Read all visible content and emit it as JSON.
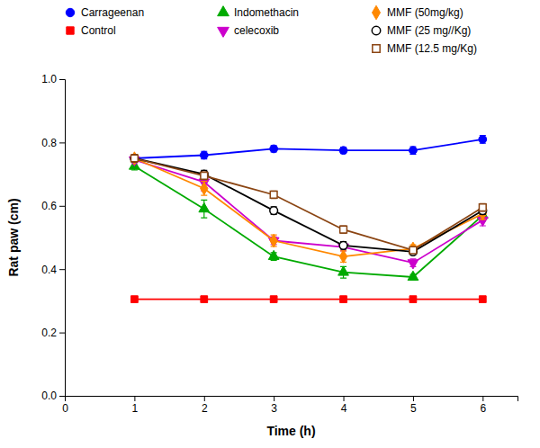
{
  "chart_data": {
    "type": "line",
    "xlabel": "Time (h)",
    "ylabel": "Rat paw (cm)",
    "x": [
      1,
      2,
      3,
      4,
      5,
      6
    ],
    "series": [
      {
        "name": "Carrageenan",
        "color": "#0000FF",
        "marker": "circle",
        "line_style": "solid",
        "values": [
          0.75,
          0.76,
          0.78,
          0.775,
          0.775,
          0.81
        ],
        "errors": [
          0.01,
          0.012,
          0.01,
          0.01,
          0.012,
          0.012
        ]
      },
      {
        "name": "Control",
        "color": "#FF0000",
        "marker": "square",
        "line_style": "solid",
        "values": [
          0.305,
          0.305,
          0.305,
          0.305,
          0.305,
          0.305
        ],
        "errors": [
          0.004,
          0.004,
          0.004,
          0.004,
          0.004,
          0.004
        ]
      },
      {
        "name": "Indomethacin",
        "color": "#00AA00",
        "marker": "triangle-up",
        "line_style": "solid",
        "values": [
          0.725,
          0.59,
          0.44,
          0.39,
          0.375,
          0.57
        ],
        "errors": [
          0.012,
          0.028,
          0.012,
          0.018,
          0.008,
          0.018
        ]
      },
      {
        "name": "celecoxib",
        "color": "#CC00CC",
        "marker": "triangle-down",
        "line_style": "solid",
        "values": [
          0.745,
          0.675,
          0.49,
          0.47,
          0.42,
          0.555
        ],
        "errors": [
          0.012,
          0.028,
          0.012,
          0.012,
          0.012,
          0.018
        ]
      },
      {
        "name": "MMF (50mg/kg)",
        "color": "#FF8800",
        "marker": "diamond",
        "line_style": "solid",
        "values": [
          0.75,
          0.655,
          0.49,
          0.44,
          0.465,
          0.575
        ],
        "errors": [
          0.012,
          0.022,
          0.018,
          0.018,
          0.012,
          0.018
        ]
      },
      {
        "name": "MMF (25 mg//Kg)",
        "color": "#000000",
        "marker": "circle-open",
        "line_style": "solid",
        "values": [
          0.75,
          0.7,
          0.585,
          0.475,
          0.455,
          0.585
        ],
        "errors": [
          0.012,
          0.012,
          0.012,
          0.012,
          0.008,
          0.012
        ]
      },
      {
        "name": "MMF (12.5 mg/Kg)",
        "color": "#8B4513",
        "marker": "square-open",
        "line_style": "solid",
        "values": [
          0.75,
          0.695,
          0.635,
          0.525,
          0.46,
          0.595
        ],
        "errors": [
          0.012,
          0.012,
          0.012,
          0.012,
          0.008,
          0.012
        ]
      }
    ],
    "xlim": [
      0,
      6.5
    ],
    "ylim": [
      0.0,
      1.0
    ],
    "xticks": [
      0,
      1,
      2,
      3,
      4,
      5,
      6
    ],
    "yticks": [
      {
        "value": 0,
        "label": "0.0"
      },
      0.2,
      0.4,
      0.6,
      0.8,
      {
        "value": 1,
        "label": "1.0"
      }
    ],
    "legend": "top"
  }
}
